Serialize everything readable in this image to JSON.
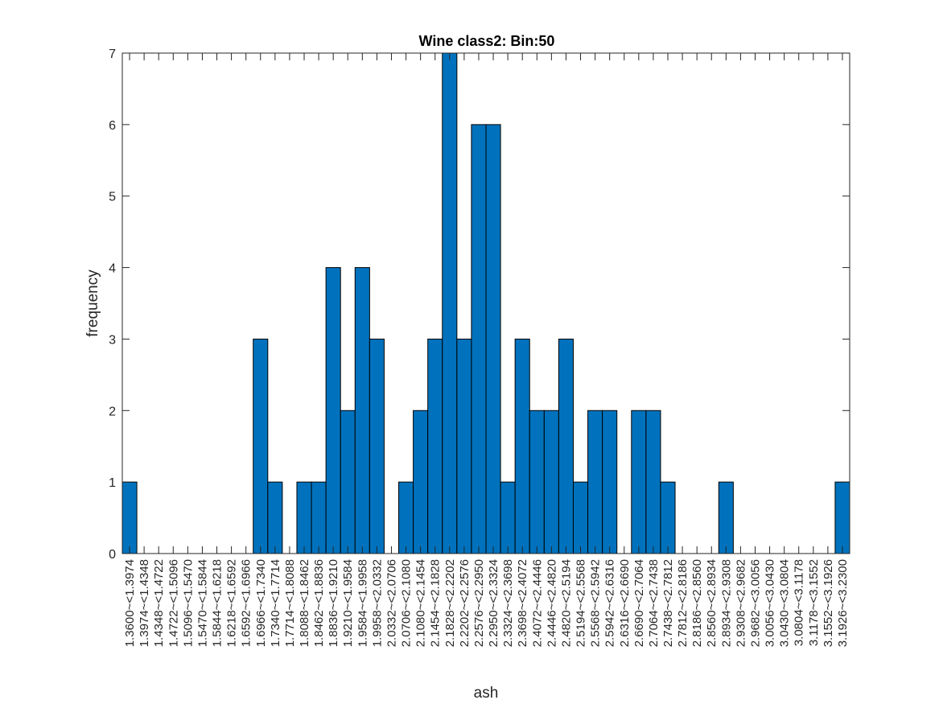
{
  "chart_data": {
    "type": "bar",
    "title": "Wine class2: Bin:50",
    "xlabel": "ash",
    "ylabel": "frequency",
    "ylim": [
      0,
      7
    ],
    "yticks": [
      "0",
      "1",
      "2",
      "3",
      "4",
      "5",
      "6",
      "7"
    ],
    "grid": false,
    "categories": [
      "1.3600~<1.3974",
      "1.3974~<1.4348",
      "1.4348~<1.4722",
      "1.4722~<1.5096",
      "1.5096~<1.5470",
      "1.5470~<1.5844",
      "1.5844~<1.6218",
      "1.6218~<1.6592",
      "1.6592~<1.6966",
      "1.6966~<1.7340",
      "1.7340~<1.7714",
      "1.7714~<1.8088",
      "1.8088~<1.8462",
      "1.8462~<1.8836",
      "1.8836~<1.9210",
      "1.9210~<1.9584",
      "1.9584~<1.9958",
      "1.9958~<2.0332",
      "2.0332~<2.0706",
      "2.0706~<2.1080",
      "2.1080~<2.1454",
      "2.1454~<2.1828",
      "2.1828~<2.2202",
      "2.2202~<2.2576",
      "2.2576~<2.2950",
      "2.2950~<2.3324",
      "2.3324~<2.3698",
      "2.3698~<2.4072",
      "2.4072~<2.4446",
      "2.4446~<2.4820",
      "2.4820~<2.5194",
      "2.5194~<2.5568",
      "2.5568~<2.5942",
      "2.5942~<2.6316",
      "2.6316~<2.6690",
      "2.6690~<2.7064",
      "2.7064~<2.7438",
      "2.7438~<2.7812",
      "2.7812~<2.8186",
      "2.8186~<2.8560",
      "2.8560~<2.8934",
      "2.8934~<2.9308",
      "2.9308~<2.9682",
      "2.9682~<3.0056",
      "3.0056~<3.0430",
      "3.0430~<3.0804",
      "3.0804~<3.1178",
      "3.1178~<3.1552",
      "3.1552~<3.1926",
      "3.1926~<3.2300"
    ],
    "values": [
      1,
      0,
      0,
      0,
      0,
      0,
      0,
      0,
      0,
      3,
      1,
      0,
      1,
      1,
      4,
      2,
      4,
      3,
      0,
      1,
      2,
      3,
      7,
      3,
      6,
      6,
      1,
      3,
      2,
      2,
      3,
      1,
      2,
      2,
      0,
      2,
      2,
      1,
      0,
      0,
      0,
      1,
      0,
      0,
      0,
      0,
      0,
      0,
      0,
      1
    ],
    "bar_color": "#0072BD",
    "edge_color": "#000000"
  }
}
